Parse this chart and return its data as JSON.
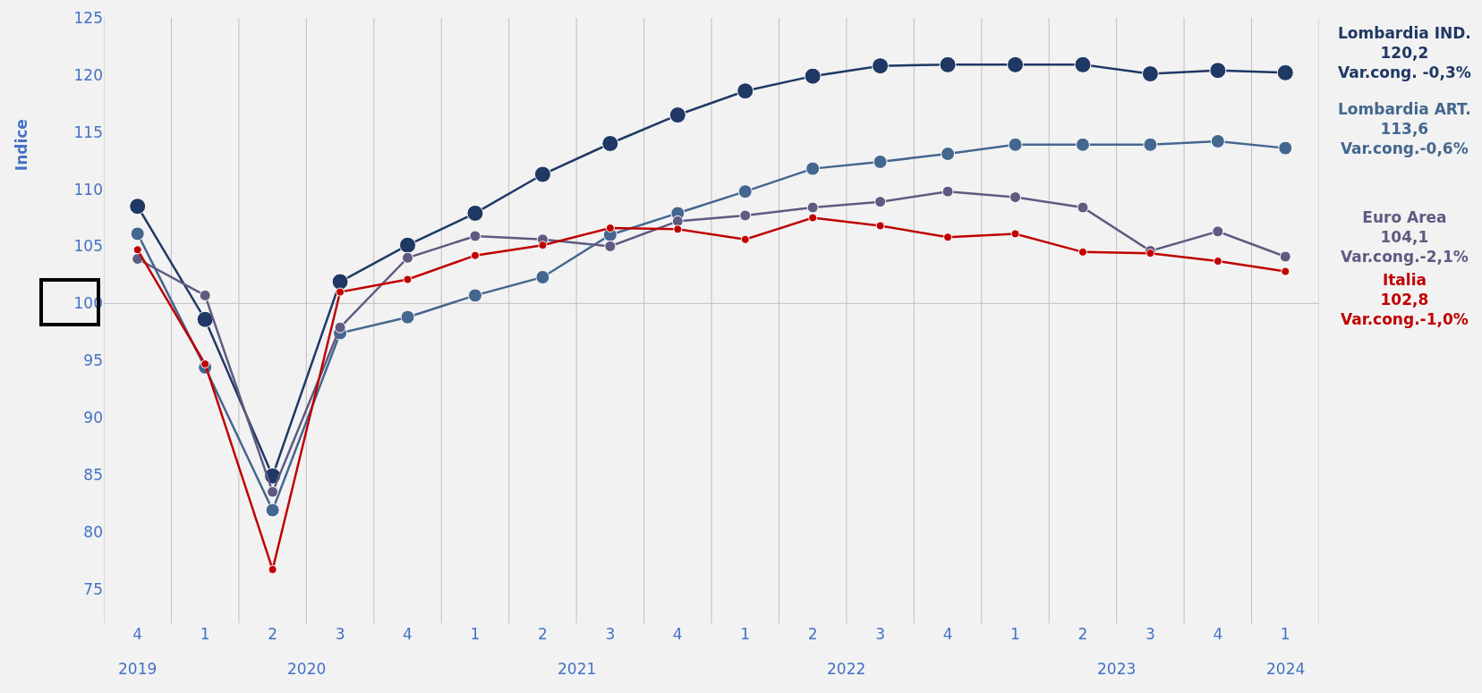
{
  "chart_data": {
    "type": "line",
    "ylabel": "Indice",
    "categories": [
      "4",
      "1",
      "2",
      "3",
      "4",
      "1",
      "2",
      "3",
      "4",
      "1",
      "2",
      "3",
      "4",
      "1",
      "2",
      "3",
      "4",
      "1"
    ],
    "ylim": [
      72,
      125
    ],
    "yticks": [
      75,
      80,
      85,
      90,
      95,
      100,
      105,
      110,
      115,
      120,
      125
    ],
    "grid": "x",
    "marker": "circle",
    "line_style": "solid",
    "legend": false,
    "ref_lines": [
      {
        "axis": "y",
        "value": 100,
        "color": "#bfbfbf"
      }
    ],
    "series": [
      {
        "name": "Lombardia IND.",
        "color": "#1f3864",
        "values": [
          108.5,
          98.6,
          84.9,
          101.9,
          105.1,
          107.9,
          111.3,
          114.0,
          116.5,
          118.6,
          119.9,
          120.8,
          120.9,
          120.9,
          120.9,
          120.1,
          120.4,
          120.2
        ]
      },
      {
        "name": "Lombardia ART.",
        "color": "#44678f",
        "values": [
          106.1,
          94.4,
          81.9,
          97.4,
          98.8,
          100.7,
          102.3,
          106.0,
          107.9,
          109.8,
          111.8,
          112.4,
          113.1,
          113.9,
          113.9,
          113.9,
          114.2,
          113.6
        ]
      },
      {
        "name": "Euro Area",
        "color": "#5f5a80",
        "values": [
          103.9,
          100.7,
          83.5,
          97.9,
          104.0,
          105.9,
          105.6,
          105.0,
          107.2,
          107.7,
          108.4,
          108.9,
          109.8,
          109.3,
          108.4,
          104.6,
          106.3,
          104.1
        ]
      },
      {
        "name": "Italia",
        "color": "#c00000",
        "values": [
          104.7,
          94.7,
          76.7,
          101.0,
          102.1,
          104.2,
          105.1,
          106.6,
          106.5,
          105.6,
          107.5,
          106.8,
          105.8,
          106.1,
          104.5,
          104.4,
          103.7,
          102.8
        ]
      }
    ],
    "annotations": [
      "2019",
      "2020",
      "2021",
      "2022",
      "2023",
      "2024",
      "120,2",
      "Var.cong. -0,3%",
      "113,6",
      "Var.cong.-0,6%",
      "104,1",
      "Var.cong.-2,1%",
      "102,8",
      "Var.cong.-1,0%"
    ]
  }
}
